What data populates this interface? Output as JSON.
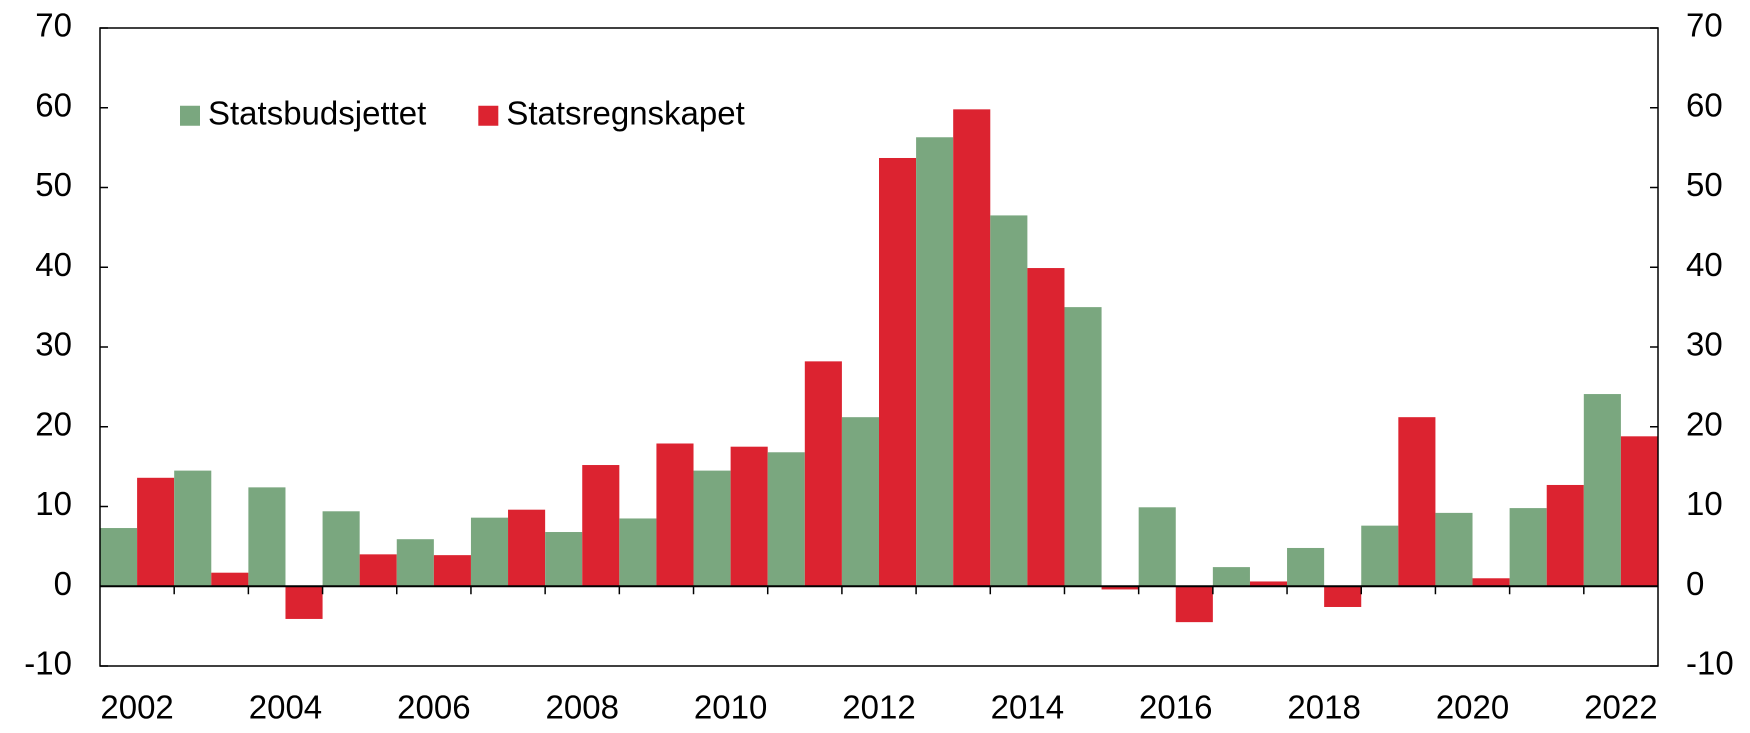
{
  "chart_data": {
    "type": "bar",
    "categories": [
      "2002",
      null,
      "2004",
      null,
      "2006",
      null,
      "2008",
      null,
      "2010",
      null,
      "2012",
      null,
      "2014",
      null,
      "2016",
      null,
      "2018",
      null,
      "2020",
      null,
      "2022"
    ],
    "series": [
      {
        "name": "Statsbudsjettet",
        "color": "#7aa77f",
        "values": [
          7.3,
          14.5,
          12.4,
          9.4,
          5.9,
          8.6,
          6.8,
          8.5,
          14.5,
          16.8,
          21.2,
          56.3,
          46.5,
          35.0,
          9.9,
          2.4,
          4.8,
          7.6,
          9.2,
          9.8,
          24.1
        ]
      },
      {
        "name": "Statsregnskapet",
        "color": "#dc2330",
        "values": [
          13.6,
          1.7,
          -4.1,
          4.0,
          3.9,
          9.6,
          15.2,
          17.9,
          17.5,
          28.2,
          53.7,
          59.8,
          39.9,
          -0.4,
          -4.5,
          0.6,
          -2.6,
          21.2,
          1.0,
          12.7,
          18.8
        ]
      }
    ],
    "ylim": [
      -10,
      70
    ],
    "yticks": [
      -10,
      0,
      10,
      20,
      30,
      40,
      50,
      60,
      70
    ],
    "y2lim": [
      -10,
      70
    ],
    "y2ticks": [
      -10,
      0,
      10,
      20,
      30,
      40,
      50,
      60,
      70
    ],
    "legend": "upper left"
  }
}
